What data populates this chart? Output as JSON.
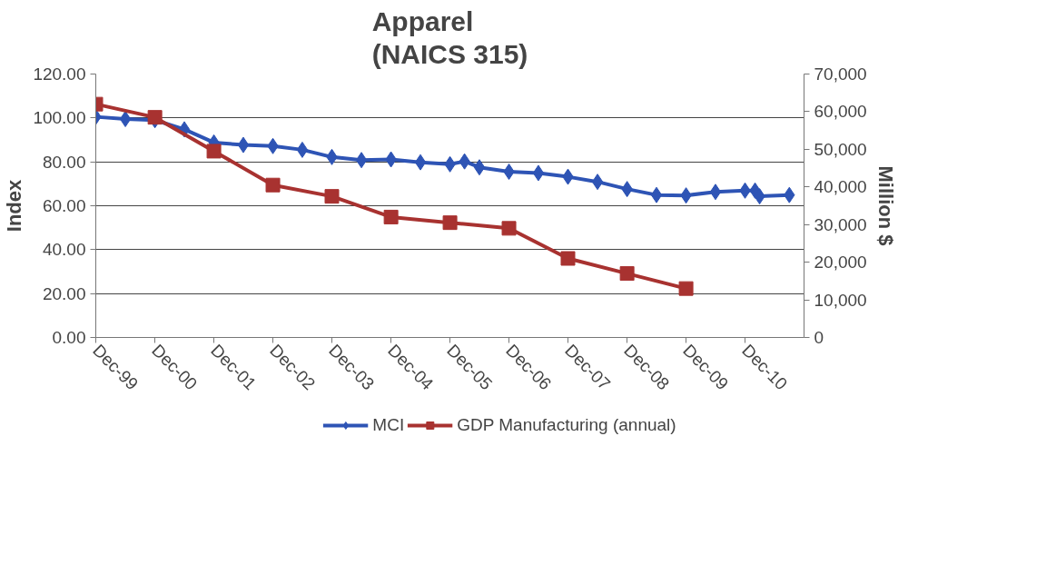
{
  "chart_data": {
    "type": "line",
    "title": "Apparel\n(NAICS 315)",
    "ylabel": "Index",
    "y2label": "Million $",
    "xlim": [
      "1999-12",
      "2011-12"
    ],
    "xticks": [
      {
        "value": "1999-12",
        "label": "Dec-99"
      },
      {
        "value": "2000-12",
        "label": "Dec-00"
      },
      {
        "value": "2001-12",
        "label": "Dec-01"
      },
      {
        "value": "2002-12",
        "label": "Dec-02"
      },
      {
        "value": "2003-12",
        "label": "Dec-03"
      },
      {
        "value": "2004-12",
        "label": "Dec-04"
      },
      {
        "value": "2005-12",
        "label": "Dec-05"
      },
      {
        "value": "2006-12",
        "label": "Dec-06"
      },
      {
        "value": "2007-12",
        "label": "Dec-07"
      },
      {
        "value": "2008-12",
        "label": "Dec-08"
      },
      {
        "value": "2009-12",
        "label": "Dec-09"
      },
      {
        "value": "2010-12",
        "label": "Dec-10"
      }
    ],
    "ylim": [
      0,
      120
    ],
    "yticks": [
      {
        "value": 0,
        "label": "0.00"
      },
      {
        "value": 20,
        "label": "20.00"
      },
      {
        "value": 40,
        "label": "40.00"
      },
      {
        "value": 60,
        "label": "60.00"
      },
      {
        "value": 80,
        "label": "80.00"
      },
      {
        "value": 100,
        "label": "100.00"
      },
      {
        "value": 120,
        "label": "120.00"
      }
    ],
    "y2lim": [
      0,
      70000
    ],
    "y2ticks": [
      0,
      {
        "value": 10000,
        "label": "10,000"
      },
      {
        "value": 20000,
        "label": "20,000"
      },
      {
        "value": 30000,
        "label": "30,000"
      },
      {
        "value": 40000,
        "label": "40,000"
      },
      {
        "value": 50000,
        "label": "50,000"
      },
      {
        "value": 60000,
        "label": "60,000"
      },
      {
        "value": 70000,
        "label": "70,000"
      }
    ],
    "grid": "y",
    "legend": "bottom",
    "line_style": "solid",
    "series": [
      {
        "name": "MCI",
        "color": "#2e54b5",
        "marker": "diamond",
        "x": [
          "1999-12",
          "2000-06",
          "2000-12",
          "2001-06",
          "2001-12",
          "2002-06",
          "2002-12",
          "2003-06",
          "2003-12",
          "2004-06",
          "2004-12",
          "2005-06",
          "2005-12",
          "2006-03",
          "2006-06",
          "2006-12",
          "2007-06",
          "2007-12",
          "2008-06",
          "2008-12",
          "2009-06",
          "2009-12",
          "2010-06",
          "2010-12",
          "2011-02",
          "2011-03",
          "2011-09"
        ],
        "values": [
          100.5,
          99.5,
          99,
          94.8,
          88.8,
          87.7,
          87.2,
          85.5,
          82.2,
          80.8,
          81.1,
          79.8,
          78.9,
          80.2,
          77.5,
          75.5,
          74.9,
          73.2,
          70.9,
          67.6,
          64.9,
          64.7,
          66.3,
          66.9,
          66.9,
          64.3,
          64.9
        ]
      },
      {
        "name": "GDP Manufacturing (annual)",
        "color": "#a83230",
        "marker": "square",
        "axis": "y2",
        "x": [
          "1999-12",
          "2000-12",
          "2001-12",
          "2002-12",
          "2003-12",
          "2004-12",
          "2005-12",
          "2006-12",
          "2007-12",
          "2008-12",
          "2009-12"
        ],
        "values": [
          62000,
          58500,
          49500,
          40500,
          37500,
          32000,
          30500,
          29000,
          21000,
          17000,
          13000
        ]
      }
    ]
  }
}
